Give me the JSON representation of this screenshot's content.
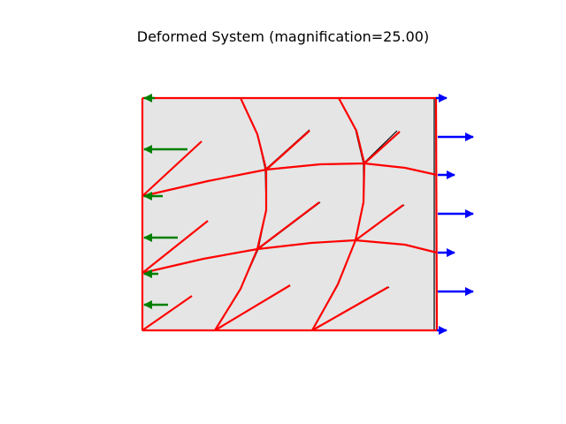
{
  "figure": {
    "title": "Deformed System (magnification=25.00)"
  },
  "colors": {
    "background": "#ffffff",
    "domain_fill": "#e5e5e5",
    "undeformed_lines": "#000000",
    "deformed_lines": "#ff0000",
    "left_load_arrows": "#008000",
    "right_load_arrows": "#0000ff"
  },
  "legend": null
}
